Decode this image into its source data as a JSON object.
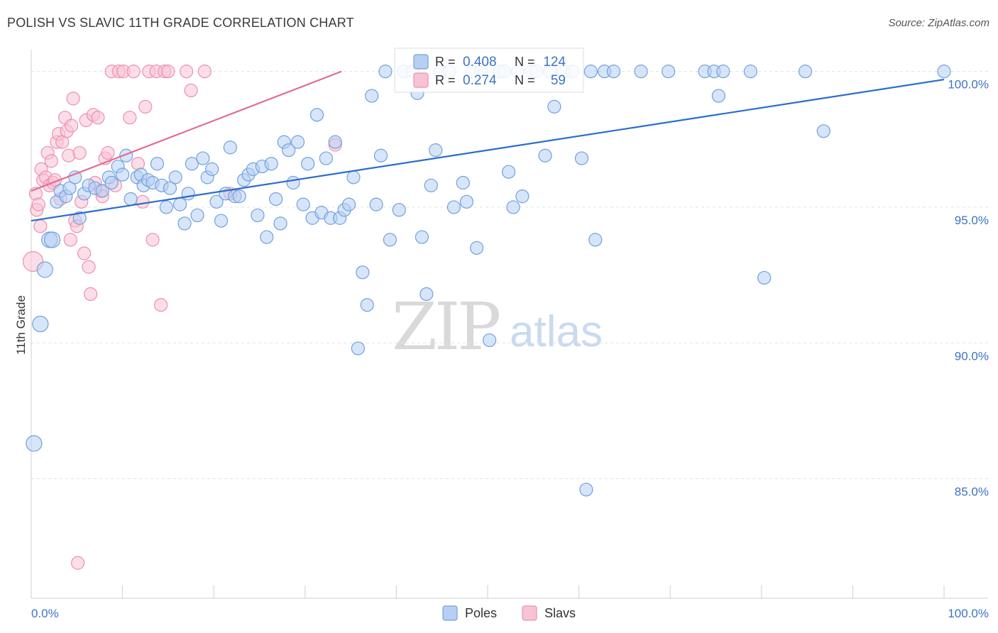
{
  "title": "POLISH VS SLAVIC 11TH GRADE CORRELATION CHART",
  "source": "Source: ZipAtlas.com",
  "watermark": {
    "zip": "ZIP",
    "atlas": "atlas"
  },
  "colors": {
    "poles": "#6fa1e0",
    "poles_fill": "#b6d0f2",
    "poles_line": "#2a6ccf",
    "slavs": "#ee8fae",
    "slavs_fill": "#f7c3d4",
    "slavs_line": "#e46b92",
    "tick": "#3d73c5"
  },
  "chart_data": {
    "type": "scatter",
    "title": "POLISH VS SLAVIC 11TH GRADE CORRELATION CHART",
    "xlabel": "",
    "ylabel": "11th Grade",
    "xlim": [
      0,
      100
    ],
    "ylim": [
      80.6,
      100.8
    ],
    "x_tick_labels": [
      {
        "value": 0,
        "label": "0.0%"
      },
      {
        "value": 100,
        "label": "100.0%"
      }
    ],
    "x_minor_ticks": [
      0,
      10,
      20,
      30,
      40,
      50,
      60,
      70,
      80,
      90,
      100
    ],
    "y_ticks": [
      {
        "value": 100,
        "label": "100.0%"
      },
      {
        "value": 95,
        "label": "95.0%"
      },
      {
        "value": 90,
        "label": "90.0%"
      },
      {
        "value": 85,
        "label": "85.0%"
      }
    ],
    "legend": [
      {
        "name": "Poles"
      },
      {
        "name": "Slavs"
      }
    ],
    "stats": [
      {
        "name": "Poles",
        "r_label": "R =",
        "r": "0.408",
        "n_label": "N =",
        "n": "124"
      },
      {
        "name": "Slavs",
        "r_label": "R =",
        "r": "0.274",
        "n_label": "N =",
        "n": "59"
      }
    ],
    "series": [
      {
        "name": "Poles",
        "trend": {
          "x": [
            0,
            100
          ],
          "y": [
            94.5,
            99.7
          ]
        },
        "points": [
          [
            0.3,
            86.3,
            11
          ],
          [
            1,
            90.7,
            11
          ],
          [
            1.5,
            92.7,
            11
          ],
          [
            2,
            93.8,
            11
          ],
          [
            2.3,
            93.8,
            11
          ],
          [
            2.8,
            95.2,
            9
          ],
          [
            3.2,
            95.6,
            9
          ],
          [
            3.8,
            95.4,
            9
          ],
          [
            4.2,
            95.7,
            9
          ],
          [
            4.8,
            96.1,
            9
          ],
          [
            5.3,
            94.6,
            9
          ],
          [
            5.8,
            95.5,
            9
          ],
          [
            6.3,
            95.8,
            9
          ],
          [
            7,
            95.7,
            9
          ],
          [
            7.8,
            95.6,
            9
          ],
          [
            8.5,
            96.1,
            9
          ],
          [
            8.8,
            95.9,
            9
          ],
          [
            9.5,
            96.5,
            9
          ],
          [
            10,
            96.2,
            9
          ],
          [
            10.4,
            96.9,
            9
          ],
          [
            10.9,
            95.3,
            9
          ],
          [
            11.6,
            96.1,
            9
          ],
          [
            12,
            96.2,
            9
          ],
          [
            12.3,
            95.8,
            9
          ],
          [
            12.8,
            96.0,
            9
          ],
          [
            13.3,
            95.9,
            9
          ],
          [
            13.8,
            96.6,
            9
          ],
          [
            14.3,
            95.8,
            9
          ],
          [
            14.8,
            95.0,
            9
          ],
          [
            15.2,
            95.7,
            9
          ],
          [
            15.8,
            96.1,
            9
          ],
          [
            16.3,
            95.1,
            9
          ],
          [
            16.8,
            94.4,
            9
          ],
          [
            17.2,
            95.5,
            9
          ],
          [
            17.6,
            96.6,
            9
          ],
          [
            18.2,
            94.7,
            9
          ],
          [
            18.8,
            96.8,
            9
          ],
          [
            19.3,
            96.1,
            9
          ],
          [
            19.8,
            96.4,
            9
          ],
          [
            20.3,
            95.2,
            9
          ],
          [
            20.8,
            94.5,
            9
          ],
          [
            21.3,
            95.5,
            9
          ],
          [
            21.8,
            97.2,
            9
          ],
          [
            22.3,
            95.4,
            9
          ],
          [
            22.8,
            95.4,
            9
          ],
          [
            23.3,
            96.0,
            9
          ],
          [
            23.8,
            96.2,
            9
          ],
          [
            24.3,
            96.4,
            9
          ],
          [
            24.8,
            94.7,
            9
          ],
          [
            25.3,
            96.5,
            9
          ],
          [
            25.8,
            93.9,
            9
          ],
          [
            26.3,
            96.6,
            9
          ],
          [
            26.8,
            95.3,
            9
          ],
          [
            27.3,
            94.4,
            9
          ],
          [
            27.7,
            97.4,
            9
          ],
          [
            28.2,
            97.1,
            9
          ],
          [
            28.7,
            95.9,
            9
          ],
          [
            29.2,
            97.4,
            9
          ],
          [
            29.8,
            95.1,
            9
          ],
          [
            30.3,
            96.6,
            9
          ],
          [
            30.8,
            94.6,
            9
          ],
          [
            31.3,
            98.4,
            9
          ],
          [
            31.8,
            94.8,
            9
          ],
          [
            32.3,
            96.8,
            9
          ],
          [
            32.8,
            94.6,
            9
          ],
          [
            33.3,
            97.4,
            9
          ],
          [
            33.8,
            94.6,
            9
          ],
          [
            34.3,
            94.9,
            9
          ],
          [
            34.8,
            95.1,
            9
          ],
          [
            35.3,
            96.1,
            9
          ],
          [
            35.8,
            89.8,
            9
          ],
          [
            36.3,
            92.6,
            9
          ],
          [
            36.8,
            91.4,
            9
          ],
          [
            37.3,
            99.1,
            9
          ],
          [
            37.8,
            95.1,
            9
          ],
          [
            38.3,
            96.9,
            9
          ],
          [
            38.8,
            100,
            9
          ],
          [
            39.3,
            93.8,
            9
          ],
          [
            40.3,
            94.9,
            9
          ],
          [
            40.8,
            100,
            9
          ],
          [
            41.8,
            100,
            9
          ],
          [
            42.3,
            99.2,
            9
          ],
          [
            42.8,
            93.9,
            9
          ],
          [
            43.3,
            91.8,
            9
          ],
          [
            43.8,
            95.8,
            9
          ],
          [
            44.3,
            97.1,
            9
          ],
          [
            44.8,
            100,
            9
          ],
          [
            45.8,
            100,
            9
          ],
          [
            46.3,
            95.0,
            9
          ],
          [
            47.3,
            95.9,
            9
          ],
          [
            47.7,
            95.2,
            9
          ],
          [
            48.3,
            100,
            9
          ],
          [
            48.8,
            93.5,
            9
          ],
          [
            49.3,
            100,
            9
          ],
          [
            50.2,
            90.1,
            9
          ],
          [
            51.3,
            100,
            9
          ],
          [
            51.8,
            100,
            9
          ],
          [
            52.3,
            96.3,
            9
          ],
          [
            52.8,
            95.0,
            9
          ],
          [
            53.3,
            100,
            9
          ],
          [
            53.8,
            95.4,
            9
          ],
          [
            54.8,
            100,
            9
          ],
          [
            55.3,
            100,
            9
          ],
          [
            56.3,
            96.9,
            9
          ],
          [
            56.8,
            100,
            9
          ],
          [
            57.3,
            98.7,
            9
          ],
          [
            58.3,
            100,
            9
          ],
          [
            59.3,
            100,
            9
          ],
          [
            60.3,
            96.8,
            9
          ],
          [
            60.8,
            84.6,
            9
          ],
          [
            61.3,
            100,
            9
          ],
          [
            61.8,
            93.8,
            9
          ],
          [
            62.8,
            100,
            9
          ],
          [
            63.8,
            100,
            9
          ],
          [
            66.8,
            100,
            9
          ],
          [
            69.8,
            100,
            9
          ],
          [
            73.8,
            100,
            9
          ],
          [
            74.8,
            100,
            9
          ],
          [
            75.3,
            99.1,
            9
          ],
          [
            75.8,
            100,
            9
          ],
          [
            78.8,
            100,
            9
          ],
          [
            80.3,
            92.4,
            9
          ],
          [
            84.8,
            100,
            9
          ],
          [
            86.8,
            97.8,
            9
          ],
          [
            100,
            100,
            9
          ]
        ]
      },
      {
        "name": "Slavs",
        "trend": {
          "x": [
            0,
            34
          ],
          "y": [
            95.6,
            100
          ]
        },
        "points": [
          [
            0.2,
            93.0,
            14
          ],
          [
            0.5,
            95.5,
            9
          ],
          [
            0.6,
            94.9,
            9
          ],
          [
            0.8,
            95.1,
            9
          ],
          [
            1,
            94.3,
            9
          ],
          [
            1.1,
            96.4,
            9
          ],
          [
            1.3,
            96.0,
            9
          ],
          [
            1.6,
            96.1,
            9
          ],
          [
            1.8,
            97.0,
            9
          ],
          [
            2,
            95.8,
            9
          ],
          [
            2.2,
            96.7,
            9
          ],
          [
            2.4,
            95.9,
            9
          ],
          [
            2.6,
            96.0,
            9
          ],
          [
            2.8,
            97.4,
            9
          ],
          [
            3,
            97.7,
            9
          ],
          [
            3.2,
            95.3,
            9
          ],
          [
            3.4,
            97.4,
            9
          ],
          [
            3.7,
            98.3,
            9
          ],
          [
            3.9,
            97.8,
            9
          ],
          [
            4.1,
            96.9,
            9
          ],
          [
            4.3,
            93.8,
            9
          ],
          [
            4.4,
            98.0,
            9
          ],
          [
            4.6,
            99.0,
            9
          ],
          [
            4.8,
            94.5,
            9
          ],
          [
            5,
            94.3,
            9
          ],
          [
            5.3,
            97.0,
            9
          ],
          [
            5.5,
            95.2,
            9
          ],
          [
            5.8,
            93.3,
            9
          ],
          [
            6,
            98.2,
            9
          ],
          [
            6.3,
            92.8,
            9
          ],
          [
            6.5,
            91.8,
            9
          ],
          [
            6.8,
            98.4,
            9
          ],
          [
            7,
            95.9,
            9
          ],
          [
            7.3,
            98.3,
            9
          ],
          [
            7.6,
            95.6,
            9
          ],
          [
            7.8,
            95.4,
            9
          ],
          [
            8.1,
            96.8,
            9
          ],
          [
            8.4,
            97.0,
            9
          ],
          [
            8.8,
            100,
            9
          ],
          [
            9.2,
            95.8,
            9
          ],
          [
            9.6,
            100,
            9
          ],
          [
            10.1,
            100,
            9
          ],
          [
            10.8,
            98.3,
            9
          ],
          [
            11.2,
            100,
            9
          ],
          [
            11.7,
            96.6,
            9
          ],
          [
            12.2,
            95.2,
            9
          ],
          [
            12.5,
            98.7,
            9
          ],
          [
            12.9,
            100,
            9
          ],
          [
            13.3,
            93.8,
            9
          ],
          [
            13.7,
            100,
            9
          ],
          [
            14.2,
            91.4,
            9
          ],
          [
            14.6,
            100,
            9
          ],
          [
            15,
            100,
            9
          ],
          [
            17.5,
            99.3,
            9
          ],
          [
            19,
            100,
            9
          ],
          [
            21.8,
            95.5,
            9
          ],
          [
            5.1,
            81.9,
            9
          ],
          [
            33.3,
            97.3,
            9
          ],
          [
            17,
            100,
            9
          ]
        ]
      }
    ]
  }
}
